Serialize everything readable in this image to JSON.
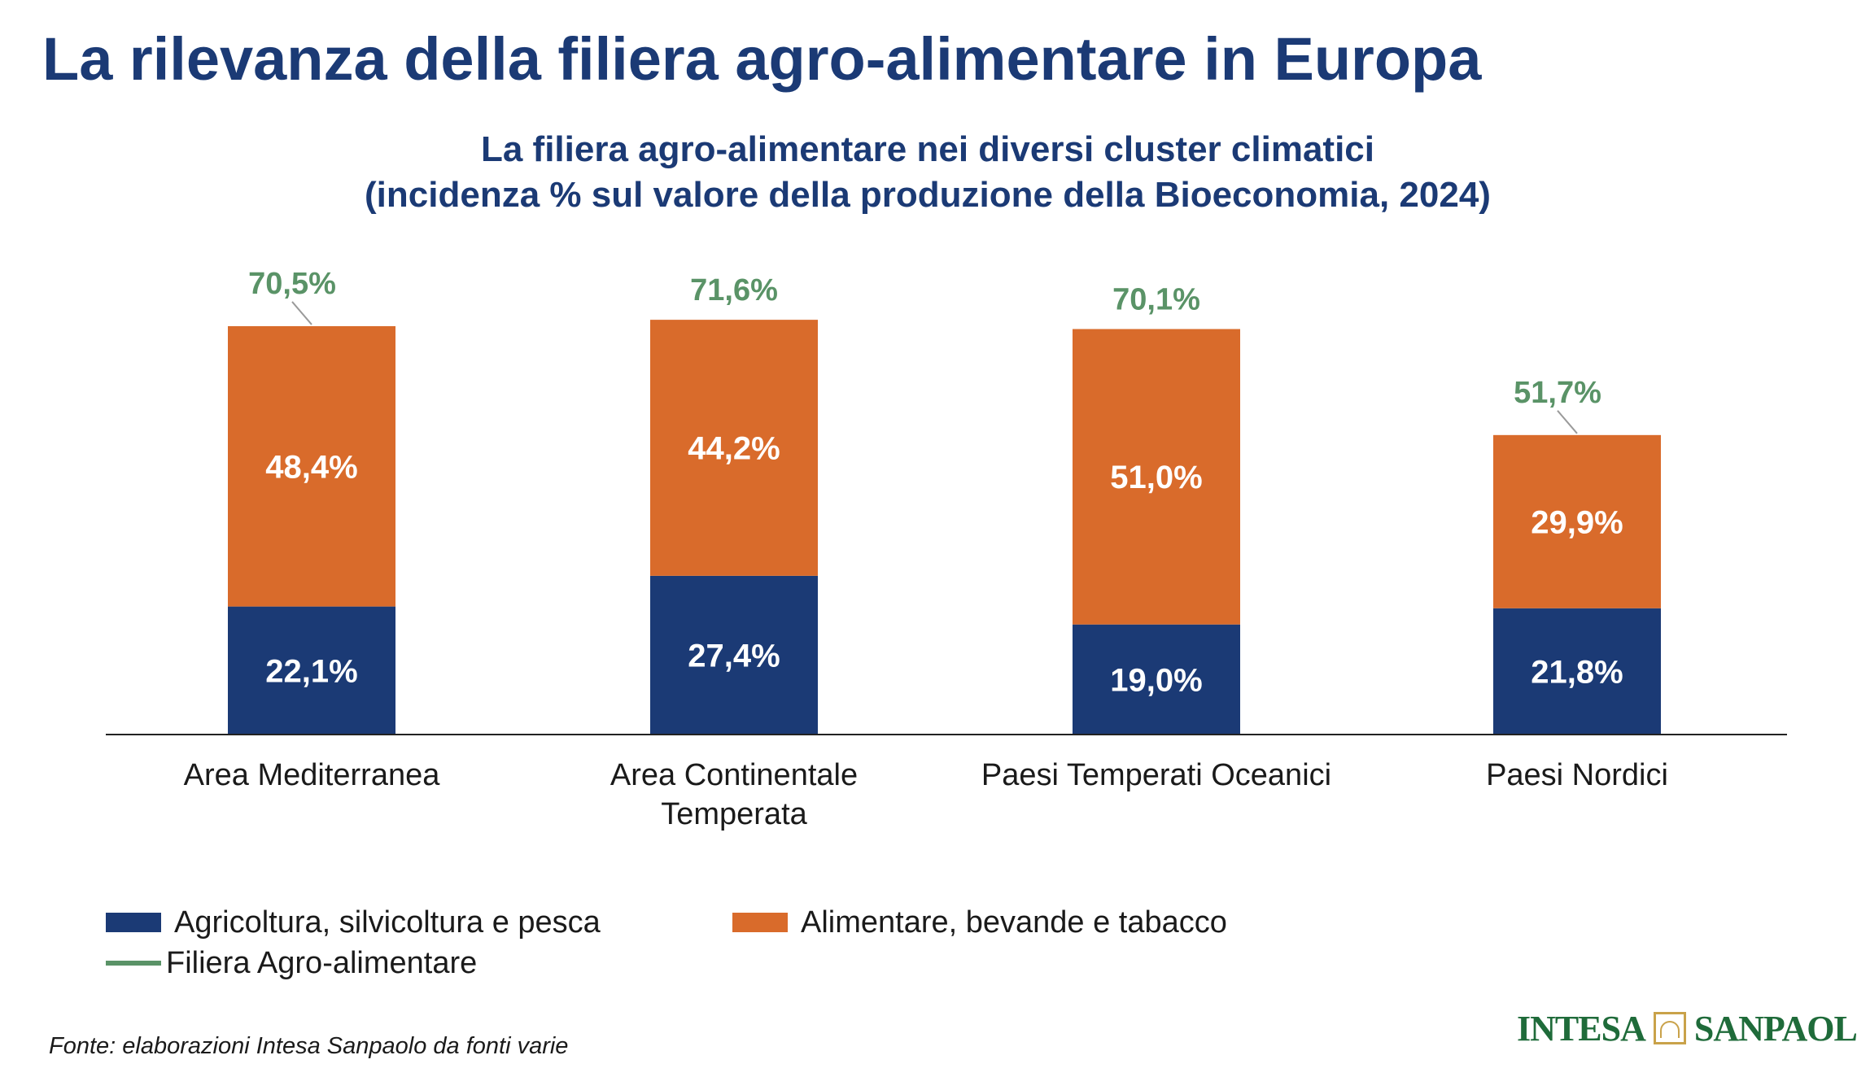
{
  "page": {
    "title": "La rilevanza della filiera agro-alimentare in Europa",
    "source": "Fonte: elaborazioni Intesa Sanpaolo da fonti varie",
    "logo": {
      "left": "INTESA",
      "right": "SANPAOLO",
      "mark_icon": "building-arch-icon"
    }
  },
  "chart_data": {
    "type": "bar",
    "stacked": true,
    "title_lines": [
      "La filiera agro-alimentare nei diversi cluster climatici",
      "(incidenza % sul valore della produzione della Bioeconomia, 2024)"
    ],
    "categories": [
      [
        "Area Mediterranea"
      ],
      [
        "Area Continentale",
        "Temperata"
      ],
      [
        "Paesi Temperati Oceanici"
      ],
      [
        "Paesi Nordici"
      ]
    ],
    "series": [
      {
        "name": "Agricoltura, silvicoltura e pesca",
        "color": "#1b3a75",
        "values": [
          22.1,
          27.4,
          19.0,
          21.8
        ],
        "labels": [
          "22,1%",
          "27,4%",
          "19,0%",
          "21,8%"
        ]
      },
      {
        "name": "Alimentare, bevande e tabacco",
        "color": "#d96b2b",
        "values": [
          48.4,
          44.2,
          51.0,
          29.9
        ],
        "labels": [
          "48,4%",
          "44,2%",
          "51,0%",
          "29,9%"
        ]
      }
    ],
    "totals": {
      "name": "Filiera Agro-alimentare",
      "color": "#5a9367",
      "values": [
        70.5,
        71.6,
        70.1,
        51.7
      ],
      "labels": [
        "70,5%",
        "71,6%",
        "70,1%",
        "51,7%"
      ],
      "leader_lines": [
        true,
        false,
        false,
        true
      ]
    },
    "ylim": [
      0,
      80
    ],
    "grid": false,
    "legend_position": "bottom-left"
  }
}
